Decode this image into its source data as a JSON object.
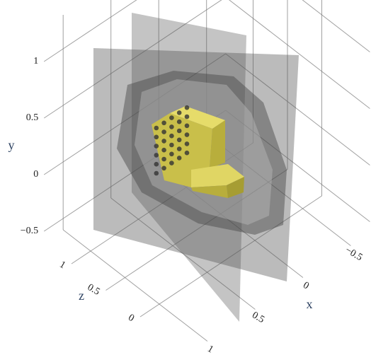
{
  "chart_data": {
    "type": "scatter3d",
    "xlabel": "x",
    "ylabel": "y",
    "zlabel": "z",
    "xlim": [
      -0.7,
      1.2
    ],
    "ylim": [
      -0.6,
      1.3
    ],
    "zlim": [
      -0.7,
      1.4
    ],
    "xticks": [
      {
        "value": -0.5,
        "label": "−0.5"
      },
      0,
      0.5,
      1
    ],
    "yticks": [
      {
        "value": -0.5,
        "label": "−0.5"
      },
      0,
      0.5,
      1
    ],
    "zticks": [
      0,
      0.5,
      1
    ],
    "grid": true,
    "series": [
      {
        "color": "#333333",
        "x": [
          0.28,
          0.36,
          0.44,
          0.52,
          0.6,
          0.28,
          0.36,
          0.44,
          0.52,
          0.6,
          0.28,
          0.36,
          0.44,
          0.52,
          0.6,
          0.28,
          0.36,
          0.44,
          0.52,
          0.6,
          0.28,
          0.36,
          0.44,
          0.52,
          0.6,
          0.28,
          0.36,
          0.44,
          0.52,
          0.6
        ],
        "y": [
          0.05,
          0.05,
          0.05,
          0.05,
          0.05,
          0.13,
          0.13,
          0.13,
          0.13,
          0.13,
          0.21,
          0.21,
          0.21,
          0.21,
          0.21,
          0.29,
          0.29,
          0.29,
          0.29,
          0.29,
          0.37,
          0.37,
          0.37,
          0.37,
          0.37,
          0.45,
          0.45,
          0.45,
          0.45,
          0.45
        ],
        "z": [
          0.6,
          0.6,
          0.6,
          0.6,
          0.6,
          0.6,
          0.6,
          0.6,
          0.6,
          0.6,
          0.6,
          0.6,
          0.6,
          0.6,
          0.6,
          0.6,
          0.6,
          0.6,
          0.6,
          0.6,
          0.6,
          0.6,
          0.6,
          0.6,
          0.6,
          0.6,
          0.6,
          0.6,
          0.6,
          0.6
        ]
      }
    ]
  }
}
